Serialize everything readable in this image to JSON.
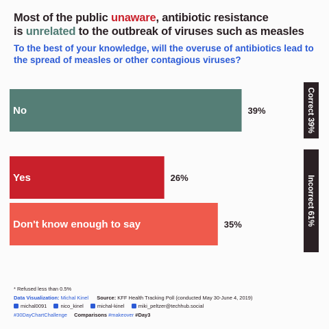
{
  "title": {
    "part1": "Most of the public ",
    "highlight1": "unaware",
    "part2": ", antibiotic resistance",
    "part3": "is ",
    "highlight2": "unrelated",
    "part4": " to the outbreak of viruses such as measles"
  },
  "question": "To the best of your knowledge, will the overuse of antibiotics lead to the spread of measles or other contagious viruses?",
  "chart_data": {
    "type": "bar",
    "orientation": "horizontal",
    "categories": [
      "No",
      "Yes",
      "Don't know enough to say"
    ],
    "values": [
      39,
      26,
      35
    ],
    "value_labels": [
      "39%",
      "26%",
      "35%"
    ],
    "colors": [
      "#557e76",
      "#c9202b",
      "#ef5a4c"
    ],
    "groups": [
      {
        "label": "Correct 39%",
        "members": [
          "No"
        ]
      },
      {
        "label": "Incorrect 61%",
        "members": [
          "Yes",
          "Don't know enough to say"
        ]
      }
    ],
    "xlim": [
      0,
      100
    ]
  },
  "footer": {
    "note": "* Refused less than 0.5%",
    "viz_label": "Data Visualization:",
    "viz_author": "Michal Kinel",
    "source_label": "Source:",
    "source_text": "KFF Health Tracking Poll (conducted May 30-June 4, 2019)",
    "socials": [
      {
        "icon": "reddit-icon",
        "handle": "michal0091"
      },
      {
        "icon": "twitter-icon",
        "handle": "nico_kinel"
      },
      {
        "icon": "linkedin-icon",
        "handle": "michal-kinel"
      },
      {
        "icon": "mastodon-icon",
        "handle": "miki_peltzer@techhub.social"
      }
    ],
    "hashtag1": "#30DayChartChallenge",
    "comparisons": "Comparisons",
    "hashtag2": "#makeover",
    "day": "#Day3"
  },
  "colors": {
    "teal": "#557e76",
    "red": "#c9202b",
    "coral": "#ef5a4c",
    "dark": "#2a2024",
    "blue": "#2c5bd6"
  }
}
